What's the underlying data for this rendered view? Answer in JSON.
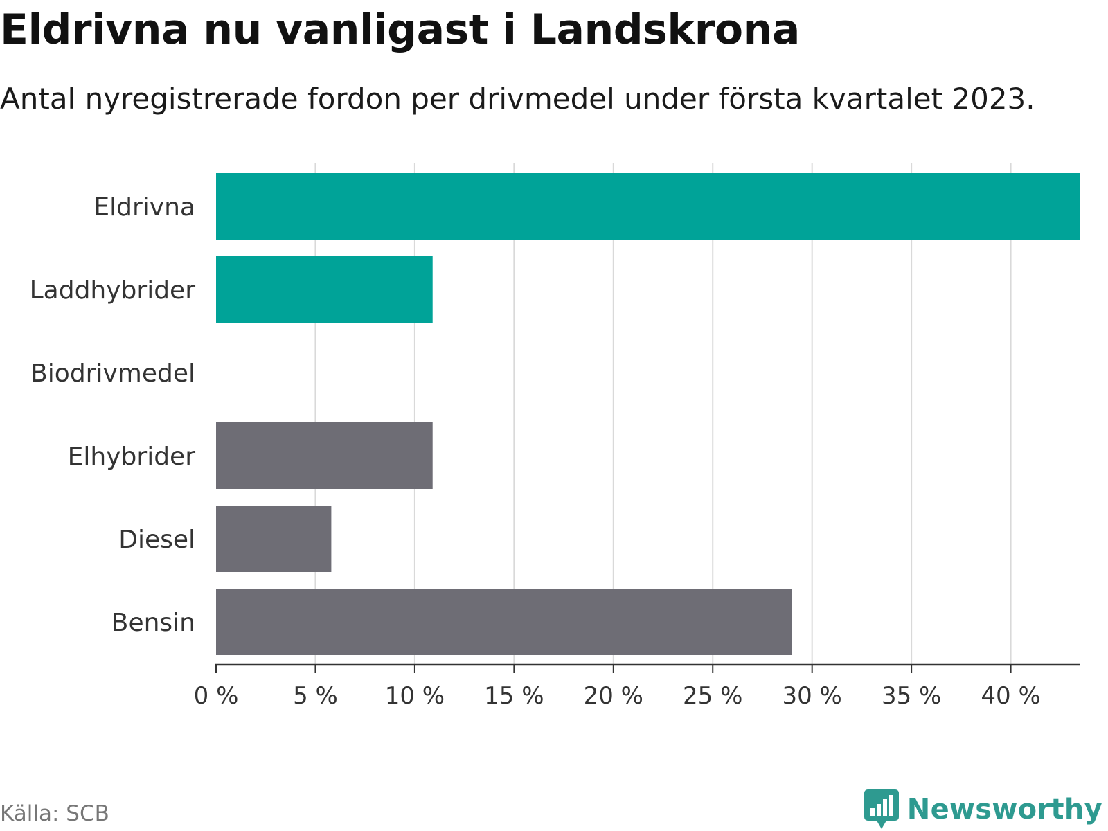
{
  "title": "Eldrivna nu vanligast i Landskrona",
  "subtitle": "Antal nyregistrerade fordon per drivmedel under första kvartalet 2023.",
  "source": "Källa: SCB",
  "brand": {
    "name": "Newsworthy",
    "icon": "newsworthy-logo-icon"
  },
  "colors": {
    "highlight": "#00a398",
    "other": "#6e6d75",
    "grid": "#d9d9d9",
    "axis": "#333333",
    "text": "#333333"
  },
  "chart_data": {
    "type": "bar",
    "orientation": "horizontal",
    "categories": [
      "Eldrivna",
      "Laddhybrider",
      "Biodrivmedel",
      "Elhybrider",
      "Diesel",
      "Bensin"
    ],
    "values": [
      43.5,
      10.9,
      0,
      10.9,
      5.8,
      29.0
    ],
    "bar_colors": [
      "#00a398",
      "#00a398",
      "#6e6d75",
      "#6e6d75",
      "#6e6d75",
      "#6e6d75"
    ],
    "unit": "%",
    "xlim": [
      0,
      43.5
    ],
    "xticks": [
      0,
      5,
      10,
      15,
      20,
      25,
      30,
      35,
      40
    ],
    "xtick_labels": [
      "0 %",
      "5 %",
      "10 %",
      "15 %",
      "20 %",
      "25 %",
      "30 %",
      "35 %",
      "40 %"
    ],
    "grid": "vertical"
  }
}
